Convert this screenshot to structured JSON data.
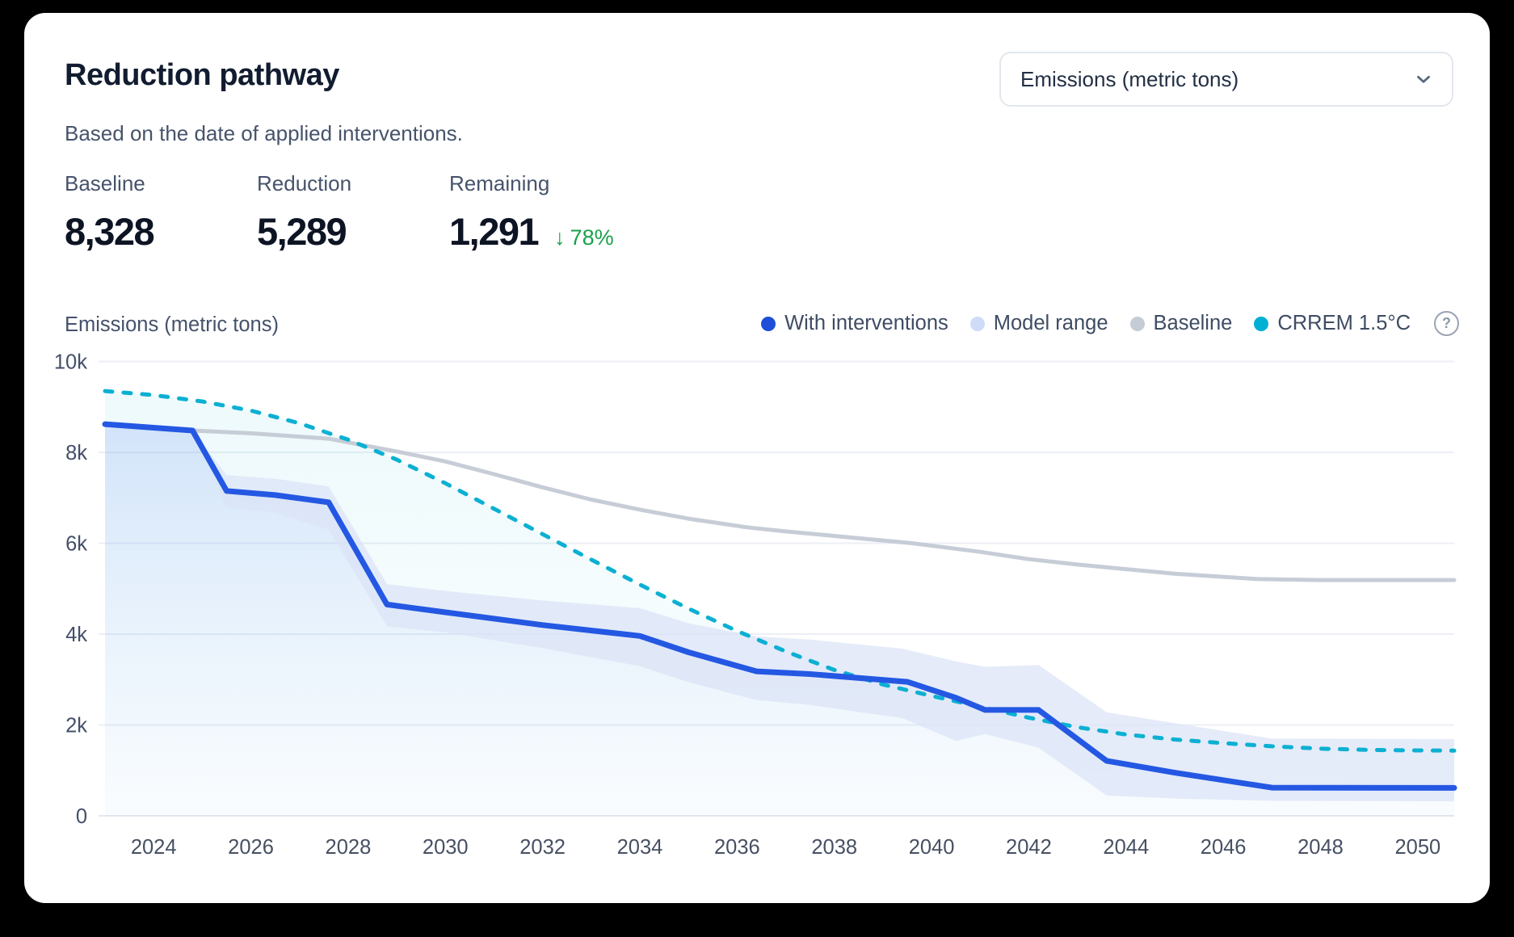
{
  "header": {
    "title": "Reduction pathway",
    "subtitle": "Based on the date of applied interventions."
  },
  "unit_select": {
    "value": "Emissions (metric tons)"
  },
  "stats": [
    {
      "label": "Baseline",
      "value": "8,328"
    },
    {
      "label": "Reduction",
      "value": "5,289"
    },
    {
      "label": "Remaining",
      "value": "1,291",
      "delta_icon": "↓",
      "delta": "78%"
    }
  ],
  "colors": {
    "accent_blue": "#2458e3",
    "legend_blue_dot": "#1d4ed8",
    "band": "#dbe3f7",
    "baseline_gray": "#c7cdd7",
    "crrem_cyan": "#0bb0d2",
    "delta_green": "#17a24b"
  },
  "chart_data": {
    "type": "line",
    "ylabel": "Emissions (metric tons)",
    "x_domain": [
      2023,
      2050.75
    ],
    "y_domain": [
      0,
      10000
    ],
    "grid": true,
    "y_ticks": [
      {
        "v": 10000,
        "label": "10k"
      },
      {
        "v": 8000,
        "label": "8k"
      },
      {
        "v": 6000,
        "label": "6k"
      },
      {
        "v": 4000,
        "label": "4k"
      },
      {
        "v": 2000,
        "label": "2k"
      },
      {
        "v": 0,
        "label": "0"
      }
    ],
    "x_ticks": [
      2024,
      2026,
      2028,
      2030,
      2032,
      2034,
      2036,
      2038,
      2040,
      2042,
      2044,
      2046,
      2048,
      2050
    ],
    "band": {
      "name": "Model range",
      "color": "#dbe3f7",
      "opacity": 0.72,
      "upper": [
        [
          2024.8,
          8480
        ],
        [
          2025.5,
          7500
        ],
        [
          2026.5,
          7420
        ],
        [
          2027.6,
          7250
        ],
        [
          2028.8,
          5100
        ],
        [
          2030,
          4950
        ],
        [
          2032,
          4740
        ],
        [
          2034,
          4570
        ],
        [
          2035,
          4240
        ],
        [
          2036.4,
          3950
        ],
        [
          2037.5,
          3880
        ],
        [
          2039.4,
          3680
        ],
        [
          2040.5,
          3400
        ],
        [
          2041.1,
          3280
        ],
        [
          2042.2,
          3320
        ],
        [
          2043.6,
          2280
        ],
        [
          2045,
          2040
        ],
        [
          2047,
          1700
        ],
        [
          2050.75,
          1690
        ]
      ],
      "lower": [
        [
          2024.8,
          8480
        ],
        [
          2025.5,
          6780
        ],
        [
          2026.5,
          6680
        ],
        [
          2027.6,
          6300
        ],
        [
          2028.8,
          4170
        ],
        [
          2030,
          4040
        ],
        [
          2032,
          3690
        ],
        [
          2034,
          3290
        ],
        [
          2035,
          2940
        ],
        [
          2036.4,
          2550
        ],
        [
          2037.5,
          2440
        ],
        [
          2039.4,
          2150
        ],
        [
          2040.5,
          1650
        ],
        [
          2041.1,
          1800
        ],
        [
          2042.2,
          1500
        ],
        [
          2043.6,
          450
        ],
        [
          2045,
          380
        ],
        [
          2047,
          330
        ],
        [
          2050.75,
          320
        ]
      ]
    },
    "series": [
      {
        "name": "Baseline",
        "color": "#c7cdd7",
        "width": 5,
        "dashed": false,
        "area": "none",
        "points": [
          [
            2024.8,
            8480
          ],
          [
            2026,
            8420
          ],
          [
            2027.6,
            8300
          ],
          [
            2029,
            8020
          ],
          [
            2030,
            7800
          ],
          [
            2031,
            7520
          ],
          [
            2032,
            7230
          ],
          [
            2033,
            6960
          ],
          [
            2034,
            6740
          ],
          [
            2035,
            6540
          ],
          [
            2036.2,
            6350
          ],
          [
            2037,
            6260
          ],
          [
            2038,
            6160
          ],
          [
            2039.6,
            6000
          ],
          [
            2041,
            5810
          ],
          [
            2042,
            5650
          ],
          [
            2043,
            5530
          ],
          [
            2044,
            5430
          ],
          [
            2045,
            5330
          ],
          [
            2046.7,
            5210
          ],
          [
            2048,
            5190
          ],
          [
            2050.75,
            5190
          ]
        ]
      },
      {
        "name": "CRREM 1.5°C",
        "color": "#0bb0d2",
        "width": 5,
        "dashed": true,
        "area": "cyanTint",
        "points": [
          [
            2023,
            9350
          ],
          [
            2024,
            9260
          ],
          [
            2025,
            9120
          ],
          [
            2026,
            8920
          ],
          [
            2027,
            8640
          ],
          [
            2028,
            8280
          ],
          [
            2029,
            7840
          ],
          [
            2030,
            7320
          ],
          [
            2031,
            6760
          ],
          [
            2032,
            6200
          ],
          [
            2033,
            5640
          ],
          [
            2034,
            5090
          ],
          [
            2035,
            4560
          ],
          [
            2036,
            4070
          ],
          [
            2037,
            3620
          ],
          [
            2038,
            3210
          ],
          [
            2039,
            2890
          ],
          [
            2040,
            2640
          ],
          [
            2041,
            2400
          ],
          [
            2042,
            2160
          ],
          [
            2043,
            1950
          ],
          [
            2044,
            1790
          ],
          [
            2045,
            1680
          ],
          [
            2046,
            1600
          ],
          [
            2047,
            1530
          ],
          [
            2048,
            1480
          ],
          [
            2049,
            1450
          ],
          [
            2050,
            1440
          ],
          [
            2050.75,
            1435
          ]
        ]
      },
      {
        "name": "With interventions",
        "color": "#2458e3",
        "width": 7,
        "dashed": false,
        "area": "blueGradient",
        "points": [
          [
            2023,
            8620
          ],
          [
            2024.8,
            8480
          ],
          [
            2025.5,
            7150
          ],
          [
            2026.5,
            7060
          ],
          [
            2027.6,
            6900
          ],
          [
            2028.8,
            4650
          ],
          [
            2030,
            4480
          ],
          [
            2032,
            4200
          ],
          [
            2034,
            3960
          ],
          [
            2035,
            3600
          ],
          [
            2036.4,
            3180
          ],
          [
            2037.5,
            3120
          ],
          [
            2039.5,
            2950
          ],
          [
            2040.5,
            2600
          ],
          [
            2041.1,
            2330
          ],
          [
            2042.2,
            2330
          ],
          [
            2043.6,
            1210
          ],
          [
            2045,
            950
          ],
          [
            2047,
            620
          ],
          [
            2050.75,
            615
          ]
        ]
      }
    ],
    "legend": [
      {
        "label": "With interventions",
        "dot": "#1d4ed8",
        "help": false
      },
      {
        "label": "Model range",
        "dot": "#cfdcf8",
        "help": false
      },
      {
        "label": "Baseline",
        "dot": "#c5ccd6",
        "help": false
      },
      {
        "label": "CRREM 1.5°C",
        "dot": "#00b0d2",
        "help": true
      }
    ],
    "legend_help_icon": "?"
  }
}
